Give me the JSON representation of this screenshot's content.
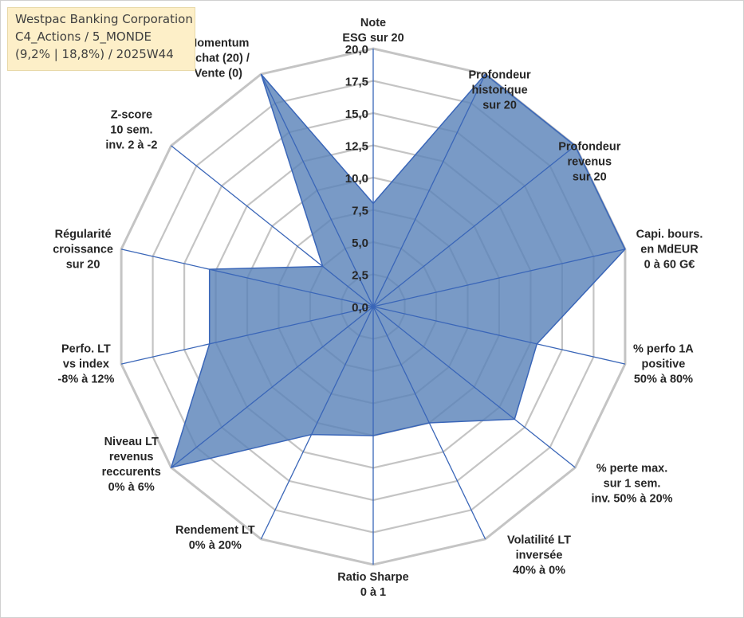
{
  "title_box": {
    "line1": "Westpac Banking Corporation",
    "line2": "C4_Actions / 5_MONDE",
    "line3": "(9,2% | 18,8%) / 2025W44"
  },
  "chart_data": {
    "type": "radar",
    "title": "Westpac Banking Corporation",
    "rmin": 0,
    "rmax": 20,
    "ticks": [
      "0,0",
      "2,5",
      "5,0",
      "7,5",
      "10,0",
      "12,5",
      "15,0",
      "17,5",
      "20,0"
    ],
    "tick_values": [
      0,
      2.5,
      5,
      7.5,
      10,
      12.5,
      15,
      17.5,
      20
    ],
    "grid": true,
    "colors": {
      "fill": "#5b84b9",
      "line": "#3a66b8",
      "grid": "#c4c4c4"
    },
    "axes": [
      {
        "label": [
          "Note",
          "ESG sur 20"
        ],
        "value": 8.0
      },
      {
        "label": [
          "Profondeur",
          "historique",
          "sur 20"
        ],
        "value": 20.0
      },
      {
        "label": [
          "Profondeur",
          "revenus",
          "sur 20"
        ],
        "value": 20.0
      },
      {
        "label": [
          "Capi. bours.",
          "en MdEUR",
          "0 à 60 G€"
        ],
        "value": 20.0
      },
      {
        "label": [
          "% perfo 1A",
          "positive",
          "50% à 80%"
        ],
        "value": 13.0
      },
      {
        "label": [
          "% perte max.",
          "sur 1 sem.",
          "inv. 50% à 20%"
        ],
        "value": 14.0
      },
      {
        "label": [
          "Volatilité LT",
          "inversée",
          "40% à 0%"
        ],
        "value": 10.0
      },
      {
        "label": [
          "Ratio Sharpe",
          "0 à 1"
        ],
        "value": 10.0
      },
      {
        "label": [
          "Rendement LT",
          "0% à 20%"
        ],
        "value": 11.0
      },
      {
        "label": [
          "Niveau LT",
          "revenus",
          "reccurents",
          "0% à 6%"
        ],
        "value": 20.0
      },
      {
        "label": [
          "Perfo. LT",
          "vs index",
          "-8% à 12%"
        ],
        "value": 13.0
      },
      {
        "label": [
          "Régularité",
          "croissance",
          "sur 20"
        ],
        "value": 13.0
      },
      {
        "label": [
          "Z-score",
          "10 sem.",
          "inv. 2 à -2"
        ],
        "value": 5.0
      },
      {
        "label": [
          "Momentum",
          "Achat (20) /",
          "Vente (0)"
        ],
        "value": 20.0
      }
    ]
  }
}
